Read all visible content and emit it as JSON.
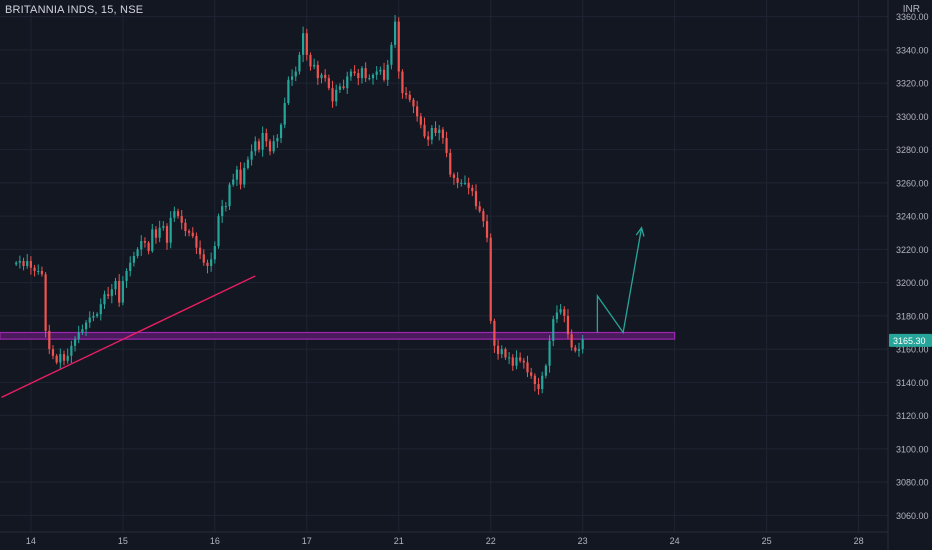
{
  "header": {
    "symbol": "BRITANNIA INDS, 15, NSE",
    "currency": "INR"
  },
  "colors": {
    "background": "#131722",
    "up": "#26a69a",
    "down": "#ef5350",
    "grid": "#1f2433",
    "trendline": "#e91e63",
    "zone_fill": "#4a1a5c",
    "zone_border": "#9c27b0",
    "projection": "#26a69a",
    "price_label_bg": "#26a69a"
  },
  "chart_data": {
    "type": "candlestick",
    "title": "BRITANNIA INDS, 15, NSE",
    "ylim": [
      3050,
      3370
    ],
    "y_ticks": [
      3060,
      3080,
      3100,
      3120,
      3140,
      3160,
      3180,
      3200,
      3220,
      3240,
      3260,
      3280,
      3300,
      3320,
      3340,
      3360
    ],
    "x_ticks": [
      {
        "label": "14",
        "idx": 4
      },
      {
        "label": "15",
        "idx": 29
      },
      {
        "label": "16",
        "idx": 54
      },
      {
        "label": "17",
        "idx": 79
      },
      {
        "label": "21",
        "idx": 104
      },
      {
        "label": "22",
        "idx": 129
      },
      {
        "label": "23",
        "idx": 154
      },
      {
        "label": "24",
        "idx": 179
      },
      {
        "label": "25",
        "idx": 204
      },
      {
        "label": "28",
        "idx": 229
      }
    ],
    "x_range": [
      -4.4,
      237
    ],
    "current_price": "3165.30",
    "current_value": 3165.3,
    "support_zone": {
      "low": 3166,
      "high": 3170,
      "x_end_idx": 179
    },
    "trendline": [
      {
        "idx": -4,
        "value": 3131
      },
      {
        "idx": 65,
        "value": 3204
      }
    ],
    "projection": [
      {
        "idx": 158,
        "value": 3170
      },
      {
        "idx": 158,
        "value": 3192
      },
      {
        "idx": 165,
        "value": 3170
      },
      {
        "idx": 170,
        "value": 3233
      }
    ],
    "grid": true,
    "closes": [
      3212,
      3213,
      3210,
      3213,
      3209,
      3207,
      3207,
      3205,
      3171,
      3160,
      3156,
      3152,
      3157,
      3153,
      3156,
      3162,
      3166,
      3170,
      3172,
      3176,
      3179,
      3180,
      3181,
      3187,
      3193,
      3192,
      3196,
      3201,
      3188,
      3201,
      3207,
      3212,
      3216,
      3220,
      3225,
      3224,
      3219,
      3232,
      3227,
      3233,
      3234,
      3224,
      3239,
      3243,
      3240,
      3236,
      3231,
      3230,
      3228,
      3221,
      3217,
      3212,
      3210,
      3214,
      3222,
      3240,
      3246,
      3246,
      3259,
      3262,
      3268,
      3259,
      3269,
      3274,
      3279,
      3285,
      3280,
      3290,
      3285,
      3279,
      3285,
      3287,
      3295,
      3308,
      3322,
      3324,
      3327,
      3337,
      3350,
      3337,
      3330,
      3331,
      3323,
      3325,
      3323,
      3317,
      3309,
      3316,
      3318,
      3317,
      3324,
      3327,
      3326,
      3323,
      3329,
      3323,
      3323,
      3325,
      3327,
      3328,
      3322,
      3331,
      3343,
      3357,
      3327,
      3314,
      3313,
      3310,
      3306,
      3300,
      3295,
      3288,
      3286,
      3293,
      3290,
      3292,
      3287,
      3278,
      3265,
      3263,
      3260,
      3260,
      3260,
      3257,
      3255,
      3246,
      3243,
      3237,
      3227,
      3177,
      3162,
      3157,
      3160,
      3155,
      3155,
      3150,
      3155,
      3153,
      3152,
      3146,
      3144,
      3139,
      3136,
      3144,
      3150,
      3165,
      3178,
      3182,
      3184,
      3180,
      3169,
      3161,
      3159,
      3160,
      3166
    ]
  }
}
